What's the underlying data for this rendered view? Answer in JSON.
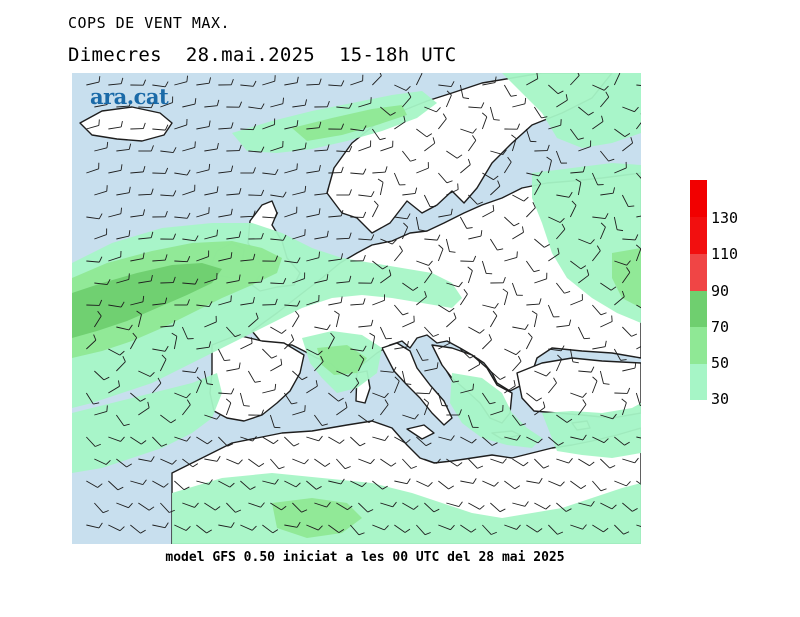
{
  "title": "COPS DE VENT MAX.",
  "subtitle": {
    "day": "Dimecres",
    "date": "28.mai.2025",
    "period": "15-18h UTC"
  },
  "footer": "model GFS 0.50 iniciat a les 00 UTC del 28 mai 2025",
  "logo": "ara.cat",
  "colors": {
    "sea": "#c8dfee",
    "land": "#ffffff",
    "coast": "#1e1e1e",
    "barb": "#1e1e1e"
  },
  "legend": {
    "levels": [
      {
        "label": "30",
        "color": "#a6f5c6"
      },
      {
        "label": "50",
        "color": "#8fe895"
      },
      {
        "label": "70",
        "color": "#6fcf6f"
      },
      {
        "label": "90",
        "color": "#f27c7c"
      },
      {
        "label": "110",
        "color": "#f04545"
      },
      {
        "label": "130",
        "color": "#f20f0f"
      }
    ],
    "top_color": "#f20000"
  }
}
